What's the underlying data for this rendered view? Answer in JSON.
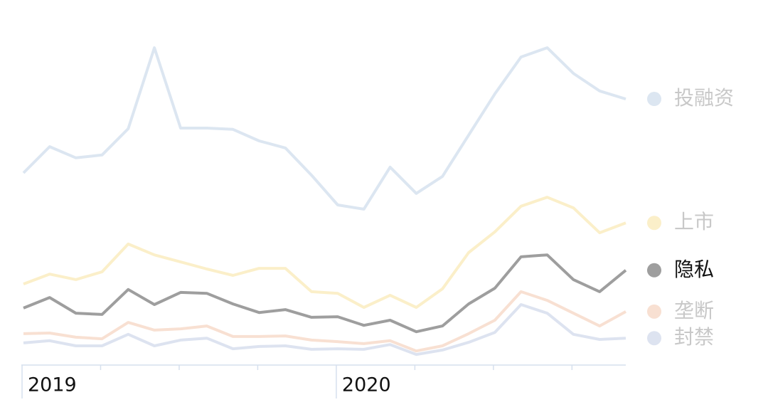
{
  "chart_data": {
    "type": "line",
    "categories": [
      "2019",
      null,
      null,
      null,
      null,
      null,
      null,
      null,
      null,
      null,
      null,
      null,
      "2020",
      null,
      null,
      null,
      null,
      null,
      null,
      null,
      null,
      null,
      null,
      null
    ],
    "ylim": [
      0,
      100
    ],
    "series": [
      {
        "name": "投融资",
        "color": "#dce6f1",
        "label_color": "#c8c8c8",
        "values": [
          60,
          68.2,
          64.7,
          65.6,
          73.8,
          99.1,
          74,
          74,
          73.6,
          70,
          67.8,
          59.3,
          50,
          48.7,
          61.8,
          53.6,
          58.9,
          71.8,
          84.7,
          96.2,
          99.1,
          91.1,
          85.6,
          83.1
        ]
      },
      {
        "name": "上市",
        "color": "#fbefc9",
        "label_color": "#c8c8c8",
        "values": [
          25.3,
          28.4,
          26.7,
          29.1,
          37.8,
          34.4,
          32.2,
          30,
          28,
          30.2,
          30.2,
          22.9,
          22.4,
          18,
          21.8,
          18,
          23.8,
          35.1,
          41.6,
          49.6,
          52.4,
          49.1,
          41.3,
          44.4
        ]
      },
      {
        "name": "隐私",
        "color": "#9e9e9e",
        "label_color": "#111111",
        "values": [
          17.8,
          21.1,
          16.2,
          15.8,
          23.6,
          18.9,
          22.7,
          22.4,
          19.1,
          16.4,
          17.3,
          14.9,
          15.1,
          12.4,
          14,
          10.4,
          12.2,
          19.1,
          24,
          33.8,
          34.4,
          26.7,
          22.9,
          29.6
        ]
      },
      {
        "name": "垄断",
        "color": "#f8e0d2",
        "label_color": "#c8c8c8",
        "values": [
          9.8,
          10,
          8.7,
          8.2,
          13.3,
          10.9,
          11.3,
          12.2,
          8.9,
          8.9,
          9.1,
          7.8,
          7.3,
          6.7,
          7.6,
          4.4,
          6,
          9.8,
          14,
          22.9,
          20.2,
          16.2,
          12.2,
          16.7
        ]
      },
      {
        "name": "封禁",
        "color": "#dde3f0",
        "label_color": "#c8c8c8",
        "values": [
          6.9,
          7.6,
          6,
          6,
          9.6,
          6,
          7.8,
          8.4,
          5.1,
          5.8,
          6,
          4.9,
          5.1,
          4.9,
          6.4,
          3.3,
          4.7,
          7.1,
          10.2,
          18.9,
          16.2,
          9.6,
          8,
          8.4
        ]
      }
    ]
  }
}
